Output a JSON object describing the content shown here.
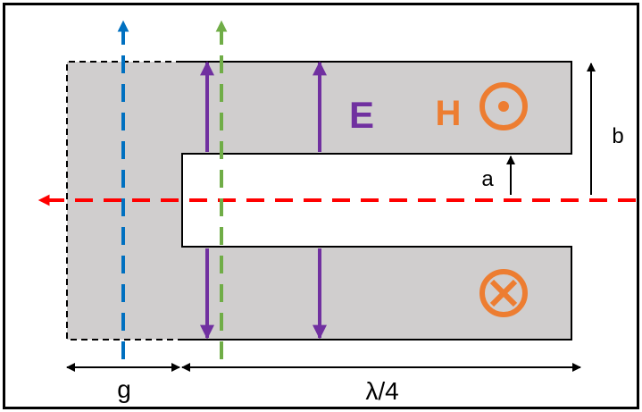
{
  "labels": {
    "e_field": "E",
    "h_field": "H",
    "gap_width": "g",
    "half_height_inner": "a",
    "half_height_outer": "b",
    "length": "λ/4"
  },
  "colors": {
    "frame": "#000000",
    "fill": "#d0cece",
    "e_field": "#7030a0",
    "h_field": "#ed7d31",
    "red_axis": "#ff0000",
    "blue_axis": "#0070c0",
    "green_axis": "#70ad47",
    "dimension": "#000000"
  },
  "icons": {
    "h_out_of_page": "circle-dot-icon",
    "h_into_page": "circle-cross-icon"
  }
}
